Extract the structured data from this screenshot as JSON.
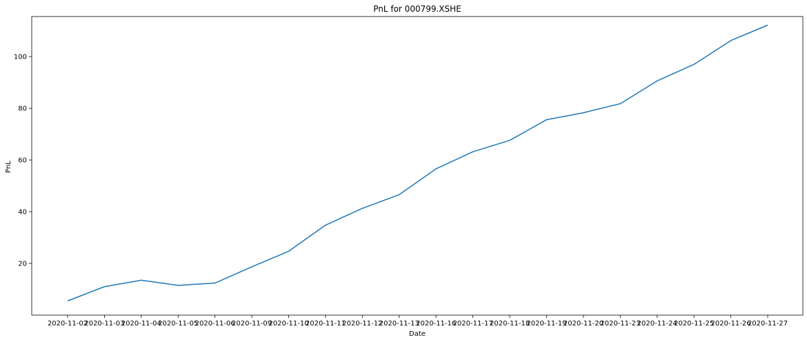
{
  "chart_data": {
    "type": "line",
    "title": "PnL for 000799.XSHE",
    "xlabel": "Date",
    "ylabel": "PnL",
    "categories": [
      "2020-11-02",
      "2020-11-03",
      "2020-11-04",
      "2020-11-05",
      "2020-11-06",
      "2020-11-09",
      "2020-11-10",
      "2020-11-11",
      "2020-11-12",
      "2020-11-13",
      "2020-11-16",
      "2020-11-17",
      "2020-11-18",
      "2020-11-19",
      "2020-11-20",
      "2020-11-23",
      "2020-11-24",
      "2020-11-25",
      "2020-11-26",
      "2020-11-27"
    ],
    "series": [
      {
        "values": [
          5.5,
          11.0,
          13.5,
          11.5,
          12.4,
          18.7,
          24.7,
          34.8,
          41.3,
          46.6,
          56.6,
          63.2,
          67.6,
          75.6,
          78.3,
          81.8,
          90.6,
          97.0,
          106.2,
          112.2
        ],
        "color": "#1f77b4"
      }
    ],
    "yticks": [
      20,
      40,
      60,
      80,
      100
    ],
    "ylim": [
      0,
      115.5
    ],
    "grid": false,
    "legend": "none"
  }
}
